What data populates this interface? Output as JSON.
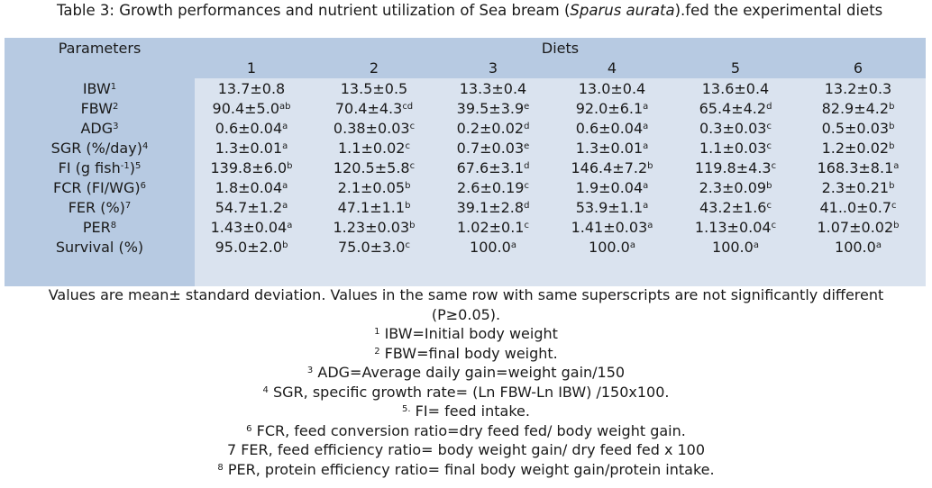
{
  "caption": {
    "prefix": "Table 3: Growth performances and nutrient utilization of Sea bream (",
    "species": "Sparus aurata",
    "suffix": ").fed the experimental diets"
  },
  "table": {
    "param_header": "Parameters",
    "diets_header": "Diets",
    "columns": [
      "1",
      "2",
      "3",
      "4",
      "5",
      "6"
    ],
    "rows": [
      {
        "label": "IBW",
        "sup": "1",
        "cells": [
          {
            "v": "13.7±0.8",
            "s": ""
          },
          {
            "v": "13.5±0.5",
            "s": ""
          },
          {
            "v": "13.3±0.4",
            "s": ""
          },
          {
            "v": "13.0±0.4",
            "s": ""
          },
          {
            "v": "13.6±0.4",
            "s": ""
          },
          {
            "v": "13.2±0.3",
            "s": ""
          }
        ]
      },
      {
        "label": "FBW",
        "sup": "2",
        "cells": [
          {
            "v": "90.4±5.0",
            "s": "ab"
          },
          {
            "v": "70.4±4.3",
            "s": "cd"
          },
          {
            "v": "39.5±3.9",
            "s": "e"
          },
          {
            "v": "92.0±6.1",
            "s": "a"
          },
          {
            "v": "65.4±4.2",
            "s": "d"
          },
          {
            "v": "82.9±4.2",
            "s": "b"
          }
        ]
      },
      {
        "label": "ADG",
        "sup": "3",
        "cells": [
          {
            "v": "0.6±0.04",
            "s": "a"
          },
          {
            "v": "0.38±0.03",
            "s": "c"
          },
          {
            "v": "0.2±0.02",
            "s": "d"
          },
          {
            "v": "0.6±0.04",
            "s": "a"
          },
          {
            "v": "0.3±0.03",
            "s": "c"
          },
          {
            "v": "0.5±0.03",
            "s": "b"
          }
        ]
      },
      {
        "label": "SGR (%/day)",
        "sup": "4",
        "cells": [
          {
            "v": "1.3±0.01",
            "s": "a"
          },
          {
            "v": "1.1±0.02",
            "s": "c"
          },
          {
            "v": "0.7±0.03",
            "s": "e"
          },
          {
            "v": "1.3±0.01",
            "s": "a"
          },
          {
            "v": "1.1±0.03",
            "s": "c"
          },
          {
            "v": "1.2±0.02",
            "s": "b"
          }
        ]
      },
      {
        "label": "FI (g fish",
        "labelsup": "-1",
        "label2": ")",
        "sup": "5",
        "cells": [
          {
            "v": "139.8±6.0",
            "s": "b"
          },
          {
            "v": "120.5±5.8",
            "s": "c"
          },
          {
            "v": "67.6±3.1",
            "s": "d"
          },
          {
            "v": "146.4±7.2",
            "s": "b"
          },
          {
            "v": "119.8±4.3",
            "s": "c"
          },
          {
            "v": "168.3±8.1",
            "s": "a"
          }
        ]
      },
      {
        "label": "FCR (FI/WG)",
        "sup": "6",
        "cells": [
          {
            "v": "1.8±0.04",
            "s": "a"
          },
          {
            "v": "2.1±0.05",
            "s": "b"
          },
          {
            "v": "2.6±0.19",
            "s": "c"
          },
          {
            "v": "1.9±0.04",
            "s": "a"
          },
          {
            "v": "2.3±0.09",
            "s": "b"
          },
          {
            "v": "2.3±0.21",
            "s": "b"
          }
        ]
      },
      {
        "label": "FER (%)",
        "sup": "7",
        "cells": [
          {
            "v": "54.7±1.2",
            "s": "a"
          },
          {
            "v": "47.1±1.1",
            "s": "b"
          },
          {
            "v": "39.1±2.8",
            "s": "d"
          },
          {
            "v": "53.9±1.1",
            "s": "a"
          },
          {
            "v": "43.2±1.6",
            "s": "c"
          },
          {
            "v": "41..0±0.7",
            "s": "c"
          }
        ]
      },
      {
        "label": "PER",
        "sup": "8",
        "cells": [
          {
            "v": "1.43±0.04",
            "s": "a"
          },
          {
            "v": "1.23±0.03",
            "s": "b"
          },
          {
            "v": "1.02±0.1",
            "s": "c"
          },
          {
            "v": "1.41±0.03",
            "s": "a"
          },
          {
            "v": "1.13±0.04",
            "s": "c"
          },
          {
            "v": "1.07±0.02",
            "s": "b"
          }
        ]
      },
      {
        "label": "Survival (%)",
        "sup": "",
        "cells": [
          {
            "v": "95.0±2.0",
            "s": "b"
          },
          {
            "v": "75.0±3.0",
            "s": "c"
          },
          {
            "v": "100.0",
            "s": "a"
          },
          {
            "v": "100.0",
            "s": "a"
          },
          {
            "v": "100.0",
            "s": "a"
          },
          {
            "v": "100.0",
            "s": "a"
          }
        ]
      }
    ]
  },
  "notes": {
    "main_line1": "Values are mean± standard deviation. Values in the same row with same superscripts are not significantly different",
    "main_line2": "(P≥0.05).",
    "footnotes": [
      {
        "mark": "1",
        "sup": true,
        "text": " IBW=Initial body weight"
      },
      {
        "mark": "2",
        "sup": true,
        "text": " FBW=final body weight."
      },
      {
        "mark": "3",
        "sup": true,
        "text": " ADG=Average daily gain=weight gain/150"
      },
      {
        "mark": "4",
        "sup": true,
        "text": " SGR, specific growth rate= (Ln FBW-Ln IBW) /150x100."
      },
      {
        "mark": "5.",
        "sup": true,
        "text": " FI= feed intake."
      },
      {
        "mark": "6",
        "sup": true,
        "text": " FCR, feed conversion ratio=dry feed fed/ body weight gain."
      },
      {
        "mark": "7",
        "sup": false,
        "text": " FER, feed efficiency ratio= body weight gain/ dry feed fed x 100"
      },
      {
        "mark": "8",
        "sup": true,
        "text": " PER, protein efficiency ratio= final body weight gain/protein intake."
      }
    ]
  },
  "colors": {
    "stub_bg": "#b7cae2",
    "body_bg": "#dae3ef",
    "text": "#1a1a1a"
  }
}
